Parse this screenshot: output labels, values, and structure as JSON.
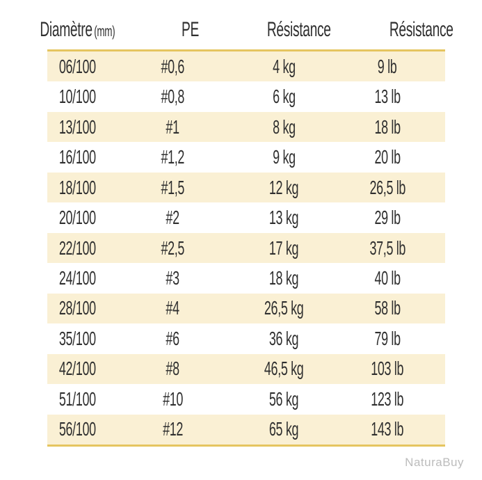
{
  "header": {
    "columns": [
      {
        "label": "Diamètre",
        "unit": "(mm)"
      },
      {
        "label": "PE",
        "unit": ""
      },
      {
        "label": "Résistance",
        "unit": ""
      },
      {
        "label": "Résistance",
        "unit": ""
      }
    ]
  },
  "chart_data": {
    "type": "table",
    "columns": [
      "Diamètre (mm)",
      "PE",
      "Résistance (kg)",
      "Résistance (lb)"
    ],
    "rows": [
      [
        "06/100",
        "#0,6",
        "4 kg",
        "9 lb"
      ],
      [
        "10/100",
        "#0,8",
        "6 kg",
        "13 lb"
      ],
      [
        "13/100",
        "#1",
        "8 kg",
        "18 lb"
      ],
      [
        "16/100",
        "#1,2",
        "9 kg",
        "20 lb"
      ],
      [
        "18/100",
        "#1,5",
        "12 kg",
        "26,5 lb"
      ],
      [
        "20/100",
        "#2",
        "13 kg",
        "29 lb"
      ],
      [
        "22/100",
        "#2,5",
        "17 kg",
        "37,5 lb"
      ],
      [
        "24/100",
        "#3",
        "18 kg",
        "40 lb"
      ],
      [
        "28/100",
        "#4",
        "26,5 kg",
        "58 lb"
      ],
      [
        "35/100",
        "#6",
        "36 kg",
        "79 lb"
      ],
      [
        "42/100",
        "#8",
        "46,5 kg",
        "103 lb"
      ],
      [
        "51/100",
        "#10",
        "56 kg",
        "123 lb"
      ],
      [
        "56/100",
        "#12",
        "65 kg",
        "143 lb"
      ]
    ],
    "layout_hints": {
      "stripe_pattern": "odd rows cream, starting with first data row",
      "rules": "gold rule above first and below last data row"
    }
  },
  "watermark": "NaturaBuy",
  "colors": {
    "background": "#ffffff",
    "stripe": "#faf0d4",
    "rule_gold": "#e5c55f",
    "text": "#2f2f2f",
    "watermark": "#bcbcbc"
  }
}
